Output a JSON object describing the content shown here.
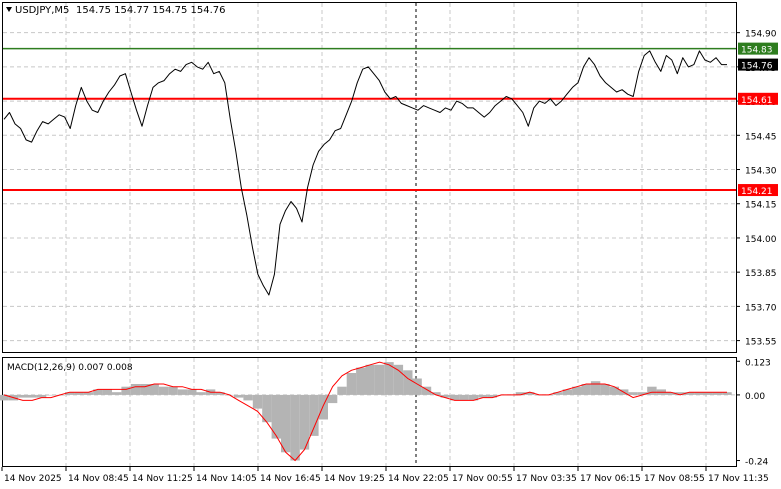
{
  "header": {
    "symbol": "USDJPY,M5",
    "ohlc": "154.75 154.77 154.75 154.76"
  },
  "macd_label": "MACD(12,26,9) 0.007 0.008",
  "colors": {
    "price_line": "#000000",
    "grid": "#c8c8c8",
    "resistance": "#2e7d1f",
    "level": "#ff0000",
    "macd_hist": "#b4b4b4",
    "macd_signal": "#ff0000",
    "current_tag": "#000000"
  },
  "chart_data": [
    {
      "type": "line",
      "title": "USDJPY,M5",
      "y_ticks": [
        "154.90",
        "154.75",
        "154.60",
        "154.45",
        "154.30",
        "154.15",
        "154.00",
        "153.85",
        "153.70",
        "153.55"
      ],
      "ylim": [
        153.5,
        155.03
      ],
      "grid": true,
      "x_labels": [
        "14 Nov 2025",
        "14 Nov 08:45",
        "14 Nov 11:25",
        "14 Nov 14:05",
        "14 Nov 16:45",
        "14 Nov 19:25",
        "14 Nov 22:05",
        "17 Nov 00:55",
        "17 Nov 03:35",
        "17 Nov 06:15",
        "17 Nov 08:55",
        "17 Nov 11:35"
      ],
      "session_divider_at": "14 Nov 22:05",
      "levels": [
        {
          "value": 154.83,
          "label": "154.83",
          "role": "green"
        },
        {
          "value": 154.61,
          "label": "154.61",
          "role": "red"
        },
        {
          "value": 154.21,
          "label": "154.21",
          "role": "red"
        }
      ],
      "current_price": {
        "value": 154.76,
        "label": "154.76"
      },
      "series": [
        {
          "values": [
            154.52,
            154.55,
            154.5,
            154.48,
            154.43,
            154.42,
            154.47,
            154.51,
            154.5,
            154.52,
            154.54,
            154.53,
            154.48,
            154.58,
            154.66,
            154.6,
            154.56,
            154.55,
            154.6,
            154.64,
            154.67,
            154.71,
            154.72,
            154.64,
            154.56,
            154.49,
            154.58,
            154.66,
            154.68,
            154.69,
            154.72,
            154.74,
            154.73,
            154.76,
            154.77,
            154.75,
            154.74,
            154.77,
            154.72,
            154.73,
            154.68,
            154.52,
            154.38,
            154.22,
            154.1,
            153.96,
            153.84,
            153.79,
            153.75,
            153.84,
            154.06,
            154.12,
            154.16,
            154.13,
            154.07,
            154.22,
            154.32,
            154.38,
            154.41,
            154.43,
            154.47,
            154.48,
            154.54,
            154.6,
            154.68,
            154.74,
            154.75,
            154.72,
            154.69,
            154.64,
            154.61,
            154.62,
            154.59,
            154.58,
            154.57,
            154.56,
            154.58,
            154.57,
            154.56,
            154.55,
            154.57,
            154.56,
            154.6,
            154.59,
            154.57,
            154.57,
            154.55,
            154.53,
            154.55,
            154.58,
            154.6,
            154.62,
            154.61,
            154.58,
            154.55,
            154.49,
            154.57,
            154.6,
            154.59,
            154.61,
            154.58,
            154.6,
            154.63,
            154.66,
            154.68,
            154.75,
            154.79,
            154.76,
            154.71,
            154.68,
            154.66,
            154.64,
            154.65,
            154.63,
            154.62,
            154.73,
            154.8,
            154.82,
            154.77,
            154.73,
            154.8,
            154.78,
            154.72,
            154.79,
            154.75,
            154.76,
            154.82,
            154.78,
            154.77,
            154.79,
            154.76,
            154.76
          ]
        }
      ]
    },
    {
      "type": "bar",
      "title": "MACD(12,26,9)",
      "y_ticks": [
        "0.123",
        "0.00",
        "-0.24"
      ],
      "ylim": [
        -0.26,
        0.135
      ],
      "series": [
        {
          "name": "MACD",
          "values": [
            -0.02,
            -0.02,
            -0.01,
            -0.01,
            -0.01,
            0,
            0,
            0.01,
            0.01,
            0.01,
            0.02,
            0.02,
            0.01,
            0.03,
            0.04,
            0.04,
            0.04,
            0.03,
            0.03,
            0.02,
            0.02,
            0.01,
            0.02,
            0.01,
            0,
            -0.01,
            -0.02,
            -0.05,
            -0.1,
            -0.16,
            -0.21,
            -0.24,
            -0.2,
            -0.15,
            -0.09,
            -0.03,
            0.03,
            0.08,
            0.1,
            0.11,
            0.11,
            0.12,
            0.11,
            0.09,
            0.06,
            0.03,
            0.01,
            -0.01,
            -0.02,
            -0.02,
            -0.02,
            -0.01,
            -0.01,
            0,
            0,
            0.01,
            0.01,
            0,
            0,
            0.01,
            0.02,
            0.03,
            0.04,
            0.05,
            0.04,
            0.03,
            0.02,
            0.01,
            0.01,
            0.03,
            0.02,
            0.01,
            0.01,
            0.01,
            0.01,
            0.01,
            0.01,
            0.01
          ]
        },
        {
          "name": "Signal",
          "values": [
            0,
            -0.01,
            -0.02,
            -0.02,
            -0.01,
            -0.01,
            0,
            0.01,
            0.01,
            0.01,
            0.02,
            0.02,
            0.02,
            0.02,
            0.03,
            0.03,
            0.04,
            0.04,
            0.03,
            0.03,
            0.02,
            0.02,
            0.01,
            0.01,
            0,
            -0.02,
            -0.04,
            -0.06,
            -0.1,
            -0.15,
            -0.21,
            -0.24,
            -0.2,
            -0.12,
            -0.04,
            0.03,
            0.07,
            0.09,
            0.1,
            0.11,
            0.12,
            0.11,
            0.09,
            0.06,
            0.04,
            0.02,
            0,
            -0.01,
            -0.02,
            -0.02,
            -0.02,
            -0.01,
            -0.01,
            0,
            0,
            0,
            0.01,
            0,
            0,
            0.01,
            0.02,
            0.03,
            0.04,
            0.04,
            0.04,
            0.03,
            0.01,
            -0.01,
            0,
            0.01,
            0.01,
            0.01,
            0,
            0.01,
            0.01,
            0.01,
            0.01,
            0.01
          ]
        }
      ]
    }
  ]
}
